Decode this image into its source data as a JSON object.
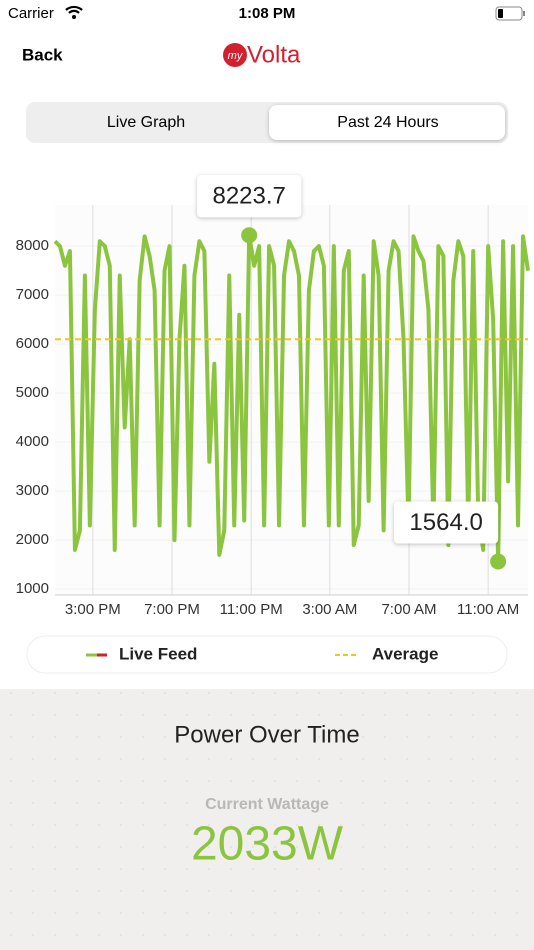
{
  "status_bar": {
    "carrier": "Carrier",
    "time": "1:08 PM"
  },
  "nav": {
    "back": "Back",
    "logo_prefix": "my",
    "logo": "Volta"
  },
  "segments": [
    "Live Graph",
    "Past 24 Hours"
  ],
  "chart_data": {
    "type": "line",
    "series": [
      {
        "name": "Live Feed",
        "color": "#8bc53f",
        "values": [
          8100,
          8000,
          7600,
          7900,
          1800,
          2200,
          7400,
          2300,
          6700,
          8100,
          8000,
          7600,
          1800,
          7400,
          4300,
          6100,
          2300,
          7300,
          8200,
          7800,
          7100,
          2300,
          7500,
          8000,
          2000,
          6100,
          7600,
          2300,
          7400,
          8100,
          7900,
          3600,
          5600,
          1700,
          2200,
          7400,
          2300,
          6600,
          2400,
          8223.7,
          7600,
          8000,
          2300,
          8000,
          7600,
          2300,
          7400,
          8100,
          7900,
          7400,
          2300,
          7100,
          7900,
          8000,
          7600,
          2300,
          8000,
          2300,
          7500,
          7900,
          1900,
          2300,
          7400,
          2800,
          8100,
          7400,
          2200,
          7500,
          8100,
          7900,
          6100,
          2300,
          8200,
          7900,
          7700,
          6700,
          2300,
          8000,
          7800,
          1900,
          7300,
          8100,
          7800,
          2300,
          7900,
          2500,
          1800,
          8000,
          6500,
          1564.0,
          8100,
          3200,
          8000,
          2300,
          8200,
          7500
        ],
        "value_labels": [
          null,
          null,
          null,
          null,
          null,
          null,
          null,
          null,
          null,
          null,
          null,
          null,
          null,
          null,
          null,
          null,
          null,
          null,
          null,
          null,
          null,
          null,
          null,
          null,
          null,
          null,
          null,
          null,
          null,
          null,
          null,
          null,
          null,
          null,
          null,
          null,
          null,
          null,
          null,
          "8223.7",
          null,
          null,
          null,
          null,
          null,
          null,
          null,
          null,
          null,
          null,
          null,
          null,
          null,
          null,
          null,
          null,
          null,
          null,
          null,
          null,
          null,
          null,
          null,
          null,
          null,
          null,
          null,
          null,
          null,
          null,
          null,
          null,
          null,
          null,
          null,
          null,
          null,
          null,
          null,
          null,
          null,
          null,
          null,
          null,
          null,
          null,
          null,
          null,
          null,
          "1564.0",
          null,
          null,
          null,
          null,
          null,
          null
        ]
      }
    ],
    "average": {
      "name": "Average",
      "value": 6100,
      "color": "#f5c518"
    },
    "xlim": [
      0,
      95
    ],
    "xticks": [
      {
        "value": 7.6,
        "label": "3:00 PM"
      },
      {
        "value": 23.5,
        "label": "7:00 PM"
      },
      {
        "value": 39.4,
        "label": "11:00 PM"
      },
      {
        "value": 55.2,
        "label": "3:00 AM"
      },
      {
        "value": 71.1,
        "label": "7:00 AM"
      },
      {
        "value": 87.0,
        "label": "11:00 AM"
      }
    ],
    "ylim": [
      880,
      8840
    ],
    "yticks": [
      1000,
      2000,
      3000,
      4000,
      5000,
      6000,
      7000,
      8000
    ],
    "grid": true
  },
  "summary": {
    "title": "Power Over Time",
    "label": "Current Wattage",
    "value": "2033W"
  }
}
